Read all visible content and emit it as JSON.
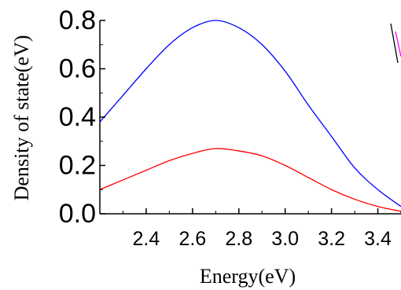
{
  "chart_data": {
    "type": "line",
    "xlabel": "Energy(eV)",
    "ylabel": "Density of  state(eV)",
    "xlim": [
      2.2,
      3.5
    ],
    "ylim": [
      0.0,
      0.8
    ],
    "xticks": [
      "2.4",
      "2.6",
      "2.8",
      "3.0",
      "3.2",
      "3.4"
    ],
    "yticks": [
      "0.0",
      "0.2",
      "0.4",
      "0.6",
      "0.8"
    ],
    "grid": false,
    "series": [
      {
        "color": "#0000ff",
        "x": [
          2.2,
          2.3,
          2.4,
          2.5,
          2.6,
          2.7,
          2.8,
          2.9,
          3.0,
          3.1,
          3.2,
          3.3,
          3.4,
          3.5
        ],
        "y": [
          0.38,
          0.49,
          0.6,
          0.7,
          0.77,
          0.8,
          0.77,
          0.7,
          0.59,
          0.45,
          0.32,
          0.19,
          0.1,
          0.03
        ]
      },
      {
        "color": "#ff0000",
        "x": [
          2.2,
          2.3,
          2.4,
          2.5,
          2.6,
          2.7,
          2.8,
          2.9,
          3.0,
          3.1,
          3.2,
          3.3,
          3.4,
          3.5
        ],
        "y": [
          0.1,
          0.14,
          0.18,
          0.22,
          0.25,
          0.27,
          0.26,
          0.24,
          0.2,
          0.15,
          0.1,
          0.06,
          0.03,
          0.01
        ]
      }
    ],
    "partial_marks": [
      {
        "color": "#000000"
      },
      {
        "color": "#ff00ff"
      }
    ]
  }
}
